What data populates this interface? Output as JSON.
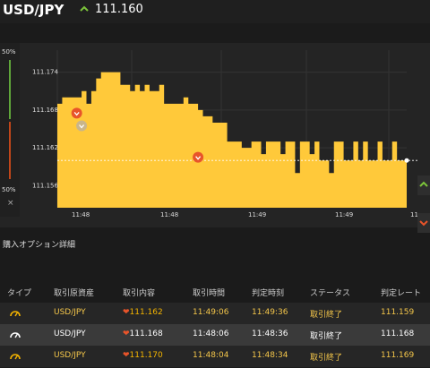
{
  "header": {
    "pair": "USD/JPY",
    "live_price": "111.160",
    "live_icon": "up-chevron-icon"
  },
  "gauge": {
    "top_pct": "50%",
    "bottom_pct": "50%",
    "close_label": "×",
    "up_ratio": 0.5
  },
  "chart_data": {
    "type": "area",
    "title": "",
    "xlabel": "",
    "ylabel": "",
    "ylim": [
      111.1525,
      111.1775
    ],
    "yticks": [
      "111.174",
      "111.168",
      "111.162",
      "111.156"
    ],
    "ytick_values": [
      111.174,
      111.168,
      111.162,
      111.156
    ],
    "xticks": [
      "11:48",
      "11:48",
      "11:49",
      "11:49",
      "11"
    ],
    "fill_color": "#ffc93a",
    "current_price": "111.160",
    "series": [
      {
        "values": [
          111.169,
          111.17,
          111.17,
          111.17,
          111.17,
          111.171,
          111.169,
          111.171,
          111.173,
          111.174,
          111.174,
          111.174,
          111.174,
          111.172,
          111.172,
          111.171,
          111.172,
          111.171,
          111.172,
          111.171,
          111.171,
          111.172,
          111.169,
          111.169,
          111.169,
          111.169,
          111.17,
          111.169,
          111.169,
          111.168,
          111.167,
          111.167,
          111.166,
          111.166,
          111.166,
          111.163,
          111.163,
          111.163,
          111.162,
          111.162,
          111.163,
          111.163,
          111.161,
          111.163,
          111.163,
          111.163,
          111.161,
          111.163,
          111.163,
          111.158,
          111.163,
          111.163,
          111.161,
          111.163,
          111.16,
          111.16,
          111.158,
          111.163,
          111.163,
          111.16,
          111.16,
          111.163,
          111.16,
          111.163,
          111.16,
          111.16,
          111.163,
          111.16,
          111.16,
          111.163,
          111.16,
          111.16,
          111.16
        ]
      }
    ],
    "markers": [
      {
        "label": "down",
        "color": "#e8542a",
        "index": 4,
        "value": 111.1675
      },
      {
        "label": "down",
        "color": "#e8542a",
        "index": 29,
        "value": 111.1605
      },
      {
        "label": "neutral",
        "color": "#c9b58a",
        "index": 5,
        "value": 111.1655
      }
    ]
  },
  "side_buttons": {
    "up_icon": "up-chevron-icon",
    "down_icon": "down-chevron-icon"
  },
  "section_title": "購入オプション詳細",
  "table": {
    "headers": [
      "タイプ",
      "取引原資産",
      "取引内容",
      "取引時間",
      "判定時刻",
      "ステータス",
      "判定レート"
    ],
    "rows": [
      {
        "type_icon": "gauge-icon",
        "type_color": "#f4b400",
        "asset": "USD/JPY",
        "content_icon": "down-chevron-icon",
        "content": "111.162",
        "trade_time": "11:49:06",
        "judge_time": "11:49:36",
        "status": "取引終了",
        "rate": "111.159"
      },
      {
        "type_icon": "gauge-icon",
        "type_color": "#ffffff",
        "asset": "USD/JPY",
        "content_icon": "down-chevron-icon",
        "content": "111.168",
        "trade_time": "11:48:06",
        "judge_time": "11:48:36",
        "status": "取引終了",
        "rate": "111.168"
      },
      {
        "type_icon": "gauge-icon",
        "type_color": "#f4b400",
        "asset": "USD/JPY",
        "content_icon": "down-chevron-icon",
        "content": "111.170",
        "trade_time": "11:48:04",
        "judge_time": "11:48:34",
        "status": "取引終了",
        "rate": "111.169"
      }
    ]
  }
}
